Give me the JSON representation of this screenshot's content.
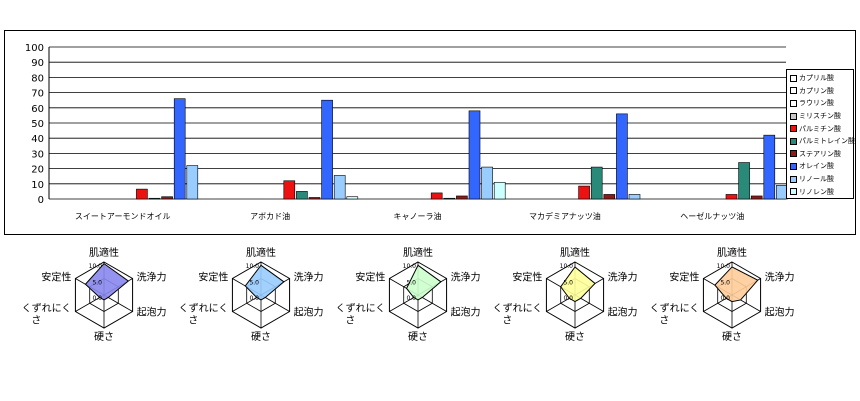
{
  "chart_data": [
    {
      "type": "bar",
      "categories": [
        "スイートアーモンドオイル",
        "アボカド油",
        "キャノーラ油",
        "マカデミアナッツ油",
        "ヘーゼルナッツ油"
      ],
      "ylim": [
        0,
        100
      ],
      "yticks": [
        0,
        10,
        20,
        30,
        40,
        50,
        60,
        70,
        80,
        90,
        100
      ],
      "grid": true,
      "legend_position": "right",
      "series": [
        {
          "name": "カプリル酸",
          "color": "#ffffff",
          "values": [
            0,
            0,
            0,
            0,
            0
          ]
        },
        {
          "name": "カプリン酸",
          "color": "#ffffff",
          "values": [
            0,
            0,
            0,
            0,
            0
          ]
        },
        {
          "name": "ラウリン酸",
          "color": "#ffffff",
          "values": [
            0,
            0,
            0,
            0,
            0
          ]
        },
        {
          "name": "ミリスチン酸",
          "color": "#c8c8c8",
          "values": [
            0,
            0,
            0,
            0,
            0
          ]
        },
        {
          "name": "パルミチン酸",
          "color": "#ee1111",
          "values": [
            6.5,
            12,
            4,
            8.5,
            3
          ]
        },
        {
          "name": "パルミトレイン酸",
          "color": "#2a8a7a",
          "values": [
            0.5,
            5,
            0.5,
            21,
            24
          ]
        },
        {
          "name": "ステアリン酸",
          "color": "#8b1a1a",
          "values": [
            1.5,
            1,
            2,
            3,
            2
          ]
        },
        {
          "name": "オレイン酸",
          "color": "#3366ff",
          "values": [
            66,
            65,
            58,
            56,
            42
          ]
        },
        {
          "name": "リノール酸",
          "color": "#99ccff",
          "values": [
            22,
            15.5,
            21,
            3,
            9
          ]
        },
        {
          "name": "リノレン酸",
          "color": "#ccffff",
          "values": [
            0,
            1.5,
            11,
            0,
            0
          ]
        }
      ]
    },
    {
      "type": "radar",
      "axes": [
        "肌適性",
        "洗浄力",
        "起泡力",
        "硬さ",
        "くずれにくさ",
        "安定性"
      ],
      "axis_max": 10.0,
      "tick_labels": [
        "10.0",
        "5.0",
        "0.0"
      ],
      "series": [
        {
          "name": "スイートアーモンドオイル",
          "color": "#8888ee",
          "values": [
            9.5,
            8.5,
            1.5,
            1.5,
            1.5,
            6.5
          ]
        },
        {
          "name": "アボカド油",
          "color": "#99ccff",
          "values": [
            9,
            8,
            1.5,
            1.5,
            1.5,
            5.5
          ]
        },
        {
          "name": "キャノーラ油",
          "color": "#ccffcc",
          "values": [
            9,
            8,
            1.5,
            1.5,
            1.5,
            4
          ]
        },
        {
          "name": "マカデミアナッツ油",
          "color": "#ffff99",
          "values": [
            8.5,
            7,
            2,
            2,
            2,
            5
          ]
        },
        {
          "name": "ヘーゼルナッツ油",
          "color": "#ffcc99",
          "values": [
            8.5,
            9,
            3,
            2,
            2,
            6
          ]
        }
      ]
    }
  ]
}
